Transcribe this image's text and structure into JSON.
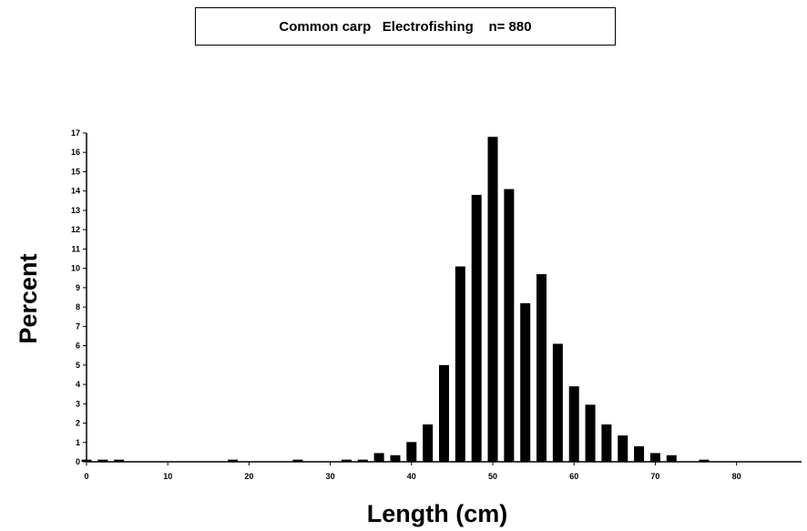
{
  "chart_data": {
    "type": "bar",
    "title": "Common carp   Electrofishing    n= 880",
    "xlabel": "Length  (cm)",
    "ylabel": "Percent",
    "xlim": [
      0,
      88
    ],
    "ylim": [
      0,
      17
    ],
    "xticks": [
      0,
      10,
      20,
      30,
      40,
      50,
      60,
      70,
      80
    ],
    "yticks": [
      0,
      1,
      2,
      3,
      4,
      5,
      6,
      7,
      8,
      9,
      10,
      11,
      12,
      13,
      14,
      15,
      16,
      17
    ],
    "grid": false,
    "bar_color": "#000000",
    "x": [
      0,
      2,
      4,
      18,
      26,
      32,
      34,
      36,
      38,
      40,
      42,
      44,
      46,
      48,
      50,
      52,
      54,
      56,
      58,
      60,
      62,
      64,
      66,
      68,
      70,
      72,
      76
    ],
    "values": [
      0.11,
      0.11,
      0.11,
      0.11,
      0.11,
      0.11,
      0.11,
      0.45,
      0.34,
      1.02,
      1.93,
      5.0,
      10.1,
      13.8,
      16.8,
      14.1,
      8.2,
      9.7,
      6.1,
      3.9,
      2.95,
      1.93,
      1.36,
      0.8,
      0.45,
      0.34,
      0.11
    ]
  }
}
